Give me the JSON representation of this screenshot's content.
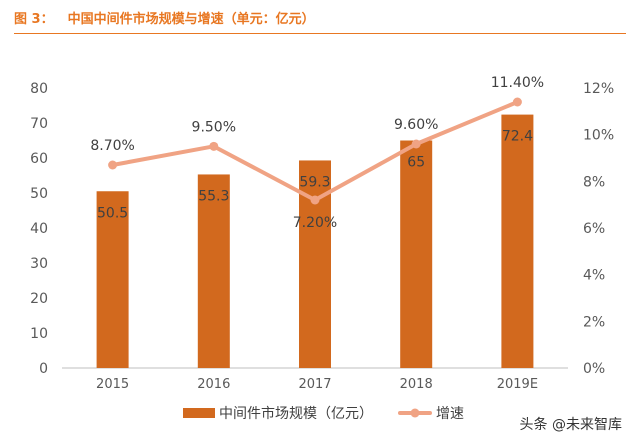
{
  "figure": {
    "label": "图 3：",
    "title": "中国中间件市场规模与增速（单元：亿元）"
  },
  "watermark": "头条 @未来智库",
  "colors": {
    "bar": "#D2691E",
    "line": "#F0A384",
    "title": "#E87722",
    "axis_text": "#595959",
    "label_text": "#404040"
  },
  "chart_data": {
    "type": "bar",
    "categories": [
      "2015",
      "2016",
      "2017",
      "2018",
      "2019E"
    ],
    "series": [
      {
        "name": "中间件市场规模（亿元）",
        "type": "bar",
        "axis": "left",
        "values": [
          50.5,
          55.3,
          59.3,
          65,
          72.4
        ],
        "labels": [
          "50.5",
          "55.3",
          "59.3",
          "65",
          "72.4"
        ]
      },
      {
        "name": "增速",
        "type": "line",
        "axis": "right",
        "values": [
          8.7,
          9.5,
          7.2,
          9.6,
          11.4
        ],
        "labels": [
          "8.70%",
          "9.50%",
          "7.20%",
          "9.60%",
          "11.40%"
        ]
      }
    ],
    "y_left": {
      "min": 0,
      "max": 80,
      "ticks": [
        "0",
        "10",
        "20",
        "30",
        "40",
        "50",
        "60",
        "70",
        "80"
      ]
    },
    "y_right": {
      "min": 0,
      "max": 12,
      "ticks": [
        "0%",
        "2%",
        "4%",
        "6%",
        "8%",
        "10%",
        "12%"
      ]
    },
    "legend_position": "bottom",
    "grid": false
  }
}
